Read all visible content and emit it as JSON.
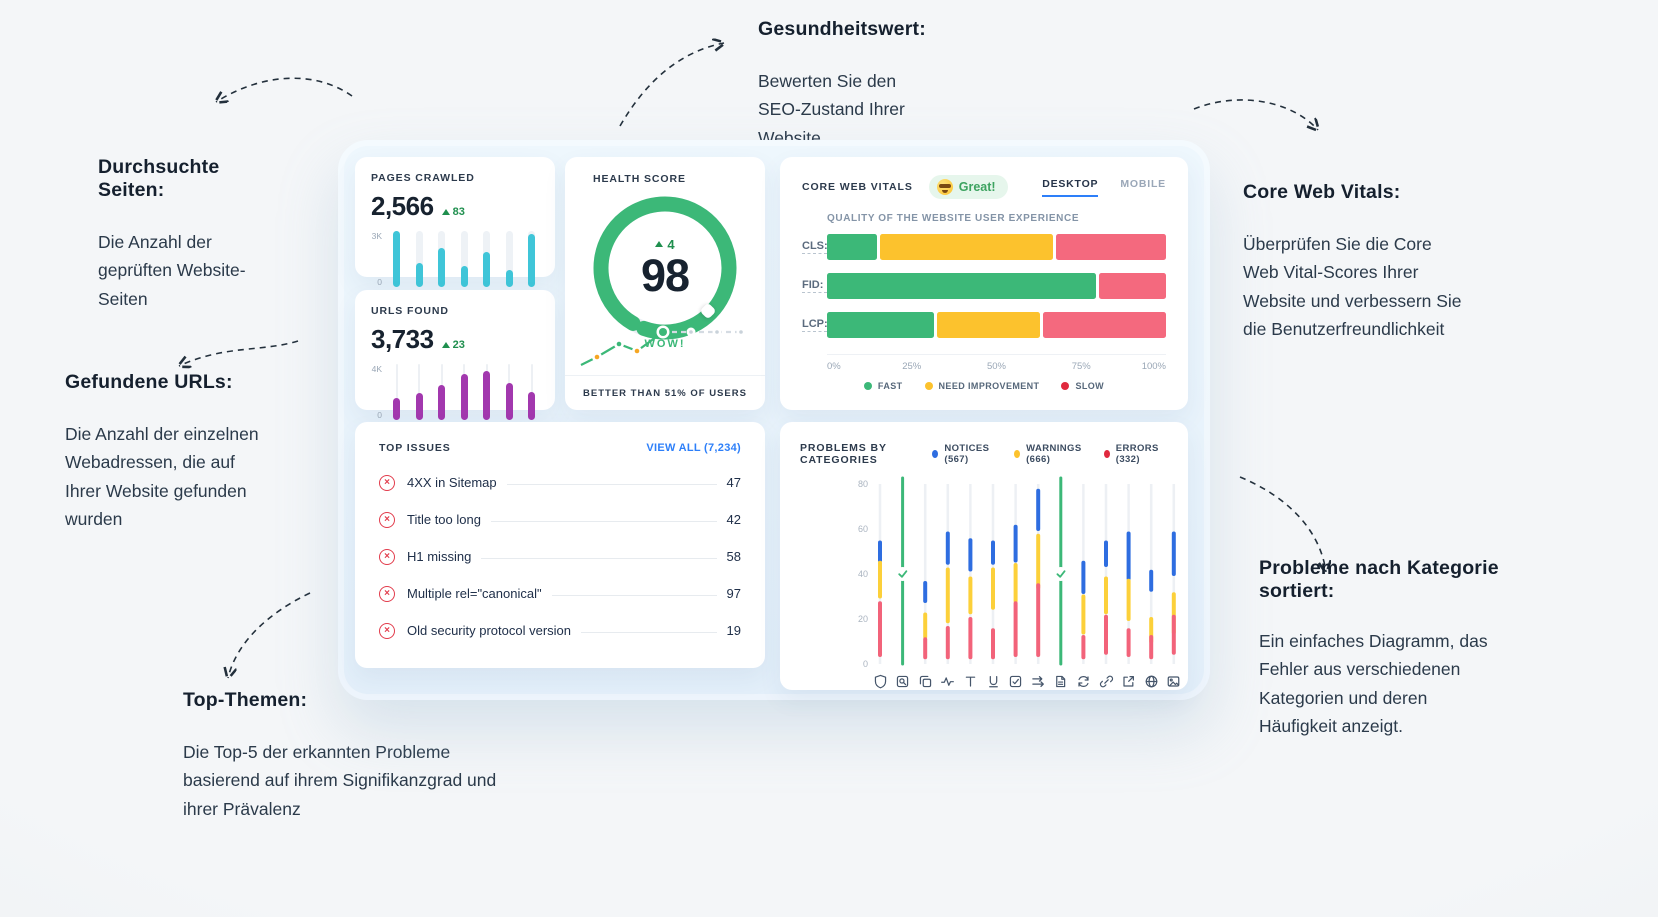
{
  "annotations": {
    "health": {
      "title": "Gesundheitswert:",
      "body": "Bewerten Sie den SEO-Zustand Ihrer Website"
    },
    "pages": {
      "title": "Durchsuchte Seiten:",
      "body": "Die Anzahl der geprüften Website-Seiten"
    },
    "urls": {
      "title": "Gefundene URLs:",
      "body": "Die Anzahl der einzelnen Webadressen, die auf Ihrer Website gefunden wurden"
    },
    "top_issues": {
      "title": "Top-Themen:",
      "body": "Die Top-5 der erkannten Probleme basierend auf ihrem Signifikanzgrad und ihrer Prävalenz"
    },
    "core_web_vitals": {
      "title": "Core Web Vitals:",
      "body": "Überprüfen Sie die Core Web Vital-Scores Ihrer Website und verbessern Sie die Benutzerfreundlichkeit"
    },
    "problems": {
      "title": "Probleme nach Kategorie sortiert:",
      "body": "Ein einfaches Diagramm, das Fehler aus verschiedenen Kategorien und deren Häufigkeit anzeigt."
    }
  },
  "colors": {
    "cyan": "#3fc5d8",
    "purple": "#a238ae",
    "green": "#3cb878",
    "amber": "#fcc22d",
    "salmon": "#f4697e",
    "royal_blue": "#2e6de0",
    "chart_yellow": "#fcd03a",
    "chart_red": "#f2637a",
    "legend_red": "#e0293e",
    "link_blue": "#2d7ff9",
    "delta_green": "#1f8f4e"
  },
  "cards": {
    "pages_crawled": {
      "title": "PAGES CRAWLED",
      "value": "2,566",
      "delta": "83",
      "y_max": "3K",
      "y_min": "0",
      "bars": [
        100,
        42,
        70,
        38,
        62,
        30,
        95
      ]
    },
    "urls_found": {
      "title": "URLS FOUND",
      "value": "3,733",
      "delta": "23",
      "y_max": "4K",
      "y_min": "0",
      "bars": [
        40,
        48,
        62,
        82,
        88,
        66,
        50
      ]
    },
    "health": {
      "title": "HEALTH SCORE",
      "delta": "4",
      "score": "98",
      "mood": "WOW!",
      "footer": "BETTER THAN 51% OF USERS"
    },
    "core_web_vitals": {
      "title": "CORE WEB VITALS",
      "badge": "Great!",
      "badge_icon": "smiley-glasses-icon",
      "tabs": [
        {
          "label": "DESKTOP",
          "active": true
        },
        {
          "label": "MOBILE",
          "active": false
        }
      ],
      "subtitle": "QUALITY OF THE WEBSITE USER EXPERIENCE",
      "rows": [
        {
          "label": "CLS:",
          "segments": [
            {
              "color": "green",
              "pct": 15
            },
            {
              "color": "amber",
              "pct": 52
            },
            {
              "color": "salmon",
              "pct": 33
            }
          ]
        },
        {
          "label": "FID:",
          "segments": [
            {
              "color": "green",
              "pct": 80
            },
            {
              "color": "salmon",
              "pct": 20
            }
          ]
        },
        {
          "label": "LCP:",
          "segments": [
            {
              "color": "green",
              "pct": 32
            },
            {
              "color": "amber",
              "pct": 31
            },
            {
              "color": "salmon",
              "pct": 37
            }
          ]
        }
      ],
      "axis": [
        "0%",
        "25%",
        "50%",
        "75%",
        "100%"
      ],
      "legend": [
        {
          "label": "FAST",
          "color": "#3cb878"
        },
        {
          "label": "NEED IMPROVEMENT",
          "color": "#fcc22d"
        },
        {
          "label": "SLOW",
          "color": "#e0293e"
        }
      ]
    },
    "top_issues": {
      "title": "TOP ISSUES",
      "view_all": "VIEW ALL (7,234)",
      "items": [
        {
          "label": "4XX in Sitemap",
          "value": "47"
        },
        {
          "label": "Title too long",
          "value": "42"
        },
        {
          "label": "H1 missing",
          "value": "58"
        },
        {
          "label": "Multiple rel=\"canonical\"",
          "value": "97"
        },
        {
          "label": "Old security protocol version",
          "value": "19"
        }
      ]
    },
    "problems": {
      "title": "PROBLEMS BY CATEGORIES",
      "legend": [
        {
          "label": "NOTICES (567)",
          "color": "#2e6de0"
        },
        {
          "label": "WARNINGS (666)",
          "color": "#fcc22d"
        },
        {
          "label": "ERRORS (332)",
          "color": "#e0293e"
        }
      ],
      "y_ticks": [
        "80",
        "60",
        "40",
        "20",
        "0"
      ],
      "y_max": 80,
      "columns": [
        {
          "icon": "shield",
          "blue": [
            46,
            54
          ],
          "yellow": [
            30,
            45
          ],
          "red": [
            4,
            27
          ]
        },
        {
          "icon": "page-search",
          "green": true
        },
        {
          "icon": "copy",
          "blue": [
            28,
            36
          ],
          "yellow": [
            12,
            22
          ],
          "red": [
            3,
            11
          ]
        },
        {
          "icon": "activity",
          "blue": [
            45,
            58
          ],
          "yellow": [
            19,
            42
          ],
          "red": [
            3,
            16
          ]
        },
        {
          "icon": "title-text",
          "blue": [
            42,
            55
          ],
          "yellow": [
            23,
            38
          ],
          "red": [
            3,
            20
          ]
        },
        {
          "icon": "underline",
          "blue": [
            45,
            54
          ],
          "yellow": [
            25,
            42
          ],
          "red": [
            3,
            15
          ]
        },
        {
          "icon": "checkbox",
          "blue": [
            46,
            61
          ],
          "yellow": [
            28,
            44
          ],
          "red": [
            4,
            27
          ]
        },
        {
          "icon": "redirect-arrows",
          "blue": [
            60,
            77
          ],
          "yellow": [
            34,
            57
          ],
          "red": [
            4,
            35
          ]
        },
        {
          "icon": "file",
          "green": true
        },
        {
          "icon": "loop",
          "blue": [
            32,
            45
          ],
          "yellow": [
            14,
            30
          ],
          "red": [
            3,
            12
          ]
        },
        {
          "icon": "link",
          "blue": [
            44,
            54
          ],
          "yellow": [
            23,
            38
          ],
          "red": [
            5,
            21
          ]
        },
        {
          "icon": "external-link",
          "blue": [
            38,
            58
          ],
          "yellow": [
            20,
            37
          ],
          "red": [
            4,
            15
          ]
        },
        {
          "icon": "globe",
          "blue": [
            33,
            41
          ],
          "yellow": [
            10,
            20
          ],
          "red": [
            3,
            12
          ]
        },
        {
          "icon": "image",
          "blue": [
            40,
            58
          ],
          "yellow": [
            14,
            31
          ],
          "red": [
            5,
            21
          ]
        }
      ]
    }
  }
}
